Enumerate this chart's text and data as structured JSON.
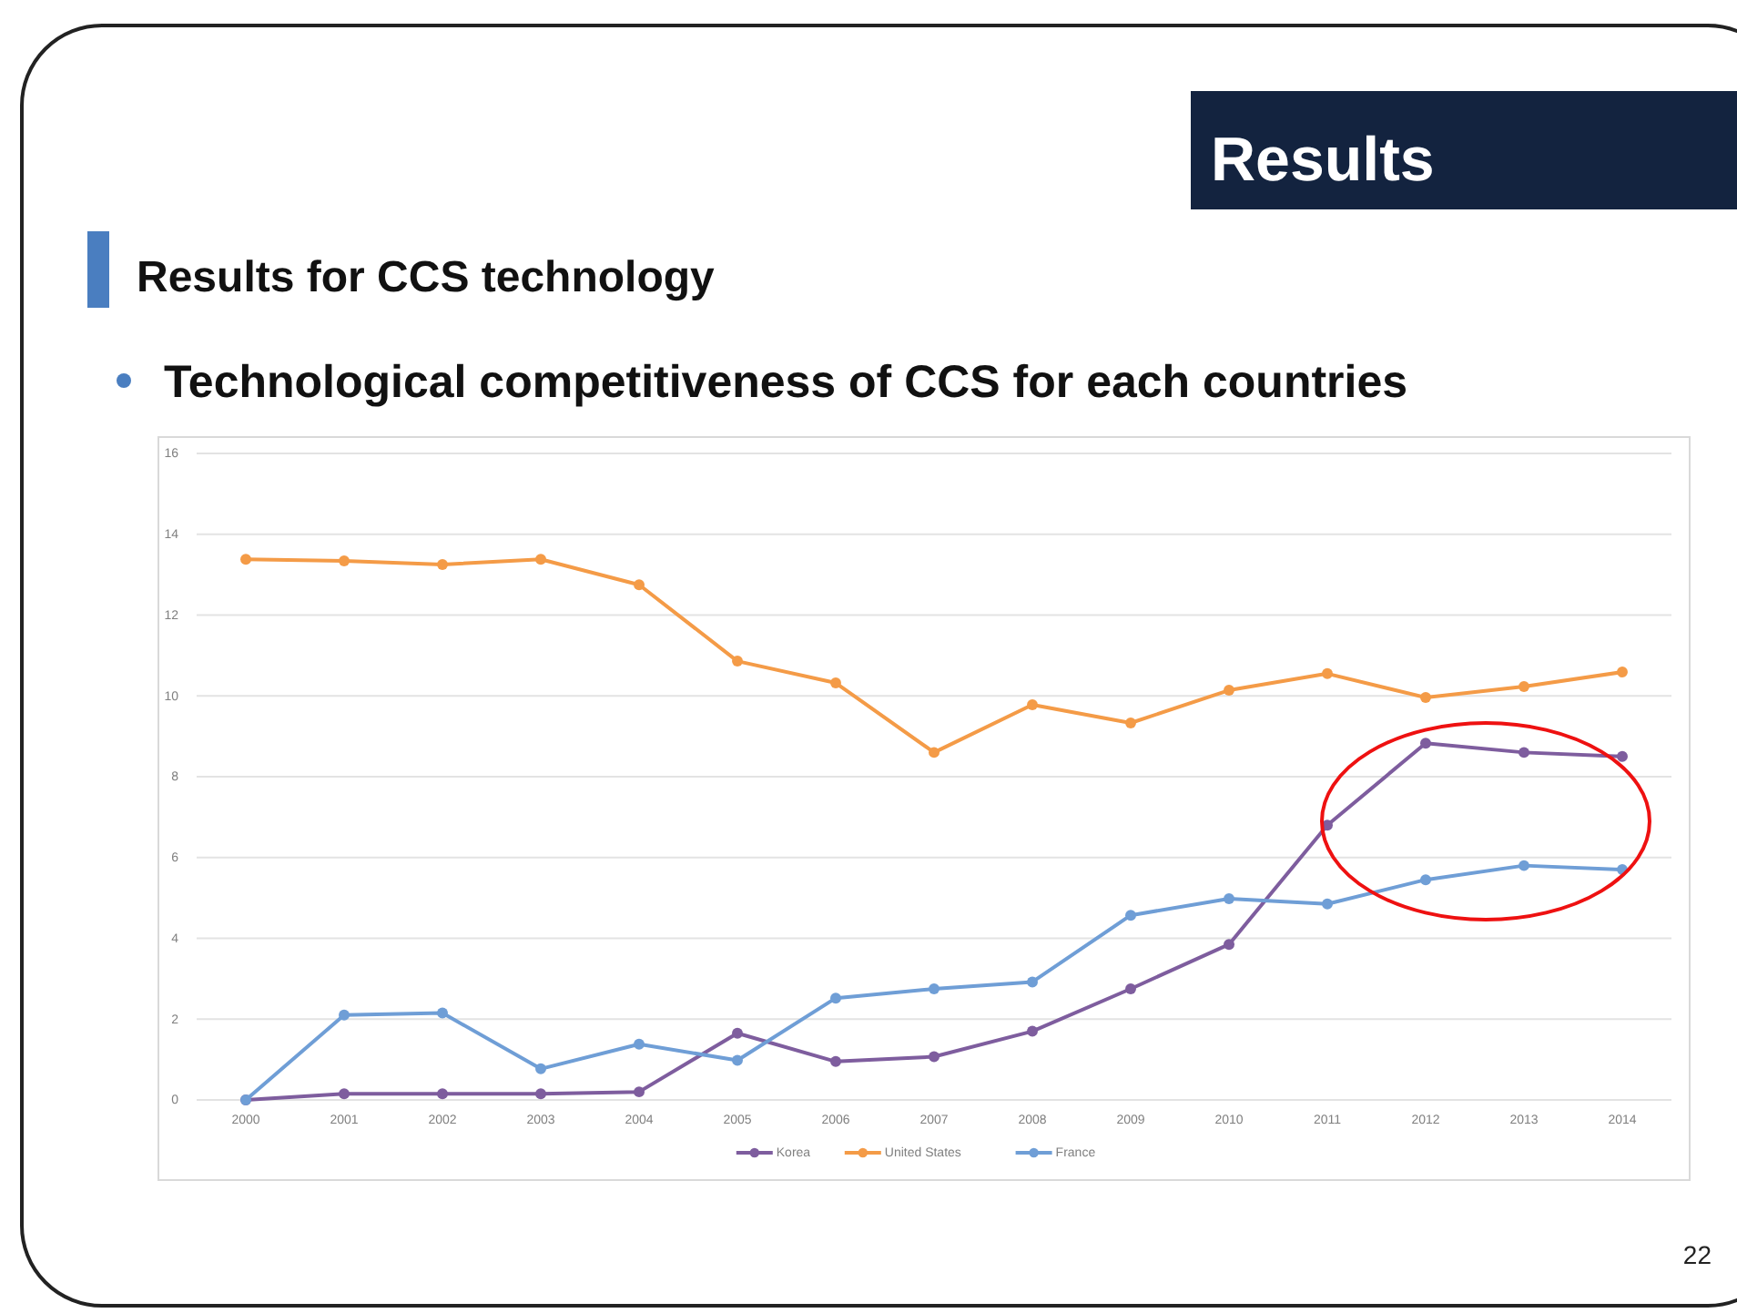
{
  "chart_data": {
    "type": "line",
    "title": "Results",
    "subtitle": "Results for CCS technology",
    "annotations": [
      "Technological competitiveness of CCS for each countries",
      "22"
    ],
    "categories": [
      "2000",
      "2001",
      "2002",
      "2003",
      "2004",
      "2005",
      "2006",
      "2007",
      "2008",
      "2009",
      "2010",
      "2011",
      "2012",
      "2013",
      "2014"
    ],
    "series": [
      {
        "name": "Korea",
        "color": "#7e5d9e",
        "values": [
          0,
          0.15,
          0.15,
          0.15,
          0.2,
          1.65,
          0.95,
          1.07,
          1.7,
          2.75,
          3.85,
          6.8,
          8.83,
          8.6,
          8.5
        ]
      },
      {
        "name": "United States",
        "color": "#f49b47",
        "values": [
          13.38,
          13.34,
          13.25,
          13.38,
          12.75,
          10.86,
          10.32,
          8.6,
          9.78,
          9.33,
          10.14,
          10.55,
          9.96,
          10.23,
          10.59
        ]
      },
      {
        "name": "France",
        "color": "#6f9ed6",
        "values": [
          0,
          2.1,
          2.15,
          0.77,
          1.38,
          0.98,
          2.52,
          2.75,
          2.92,
          4.57,
          4.98,
          4.85,
          5.45,
          5.8,
          5.7
        ]
      }
    ],
    "ylim": [
      0,
      16
    ],
    "yticks": [
      0,
      2,
      4,
      6,
      8,
      10,
      12,
      14,
      16
    ],
    "grid": "y",
    "legend": "bottom",
    "marker": "circle",
    "line_style": "solid"
  }
}
